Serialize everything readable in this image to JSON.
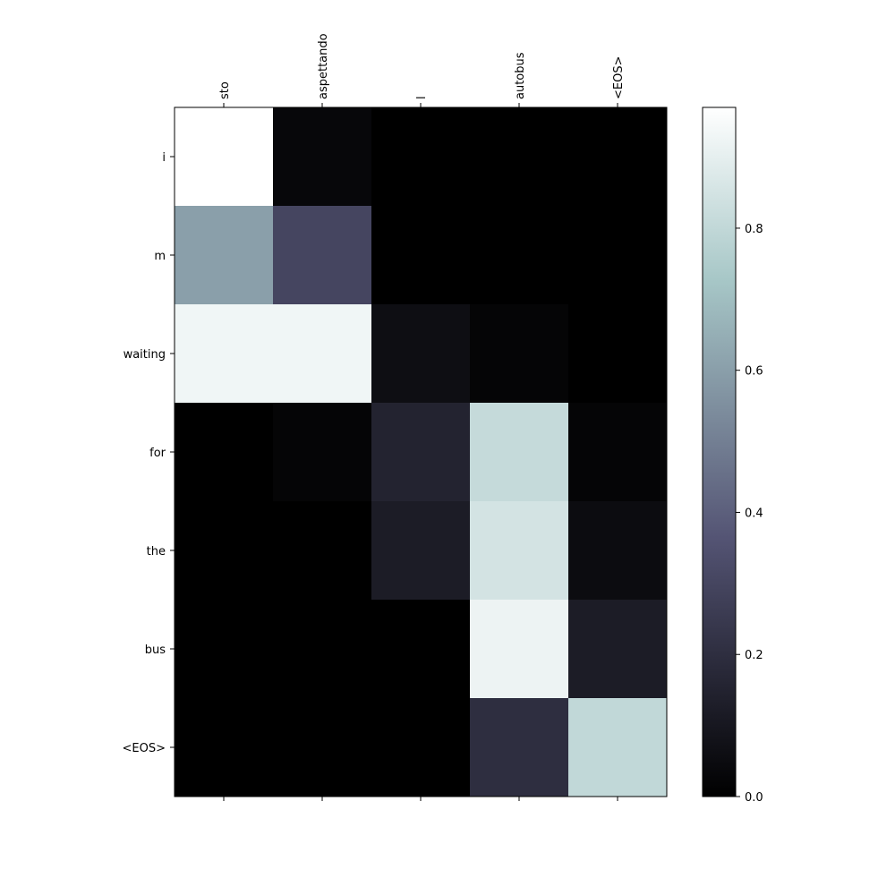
{
  "chart_data": {
    "type": "heatmap",
    "title": "",
    "xlabel": "",
    "ylabel": "",
    "x_categories": [
      "sto",
      "aspettando",
      "l",
      "autobus",
      "<EOS>"
    ],
    "y_categories": [
      "i",
      "m",
      "waiting",
      "for",
      "the",
      "bus",
      "<EOS>"
    ],
    "values": [
      [
        0.97,
        0.03,
        0.0,
        0.0,
        0.0
      ],
      [
        0.6,
        0.3,
        0.0,
        0.0,
        0.0
      ],
      [
        0.93,
        0.93,
        0.06,
        0.02,
        0.0
      ],
      [
        0.0,
        0.02,
        0.15,
        0.81,
        0.02
      ],
      [
        0.0,
        0.0,
        0.12,
        0.85,
        0.05
      ],
      [
        0.0,
        0.0,
        0.0,
        0.92,
        0.12
      ],
      [
        0.0,
        0.0,
        0.0,
        0.2,
        0.8
      ]
    ],
    "colormap": "bone",
    "colorbar": {
      "range": [
        0.0,
        0.97
      ],
      "ticks": [
        0.0,
        0.2,
        0.4,
        0.6,
        0.8
      ],
      "tick_labels": [
        "0.0",
        "0.2",
        "0.4",
        "0.6",
        "0.8"
      ]
    }
  }
}
